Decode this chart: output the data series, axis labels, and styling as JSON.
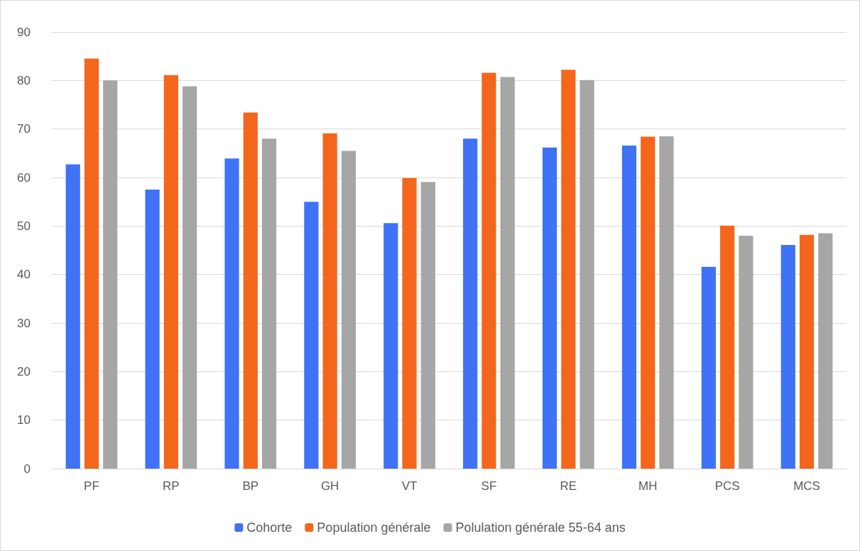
{
  "chart_data": {
    "type": "bar",
    "categories": [
      "PF",
      "RP",
      "BP",
      "GH",
      "VT",
      "SF",
      "RE",
      "MH",
      "PCS",
      "MCS"
    ],
    "series": [
      {
        "name": "Cohorte",
        "color": "#3f72f5",
        "values": [
          62.7,
          57.5,
          63.9,
          55.0,
          50.6,
          68.0,
          66.2,
          66.6,
          41.6,
          46.1
        ]
      },
      {
        "name": "Population générale",
        "color": "#f4661b",
        "values": [
          84.5,
          81.1,
          73.4,
          69.1,
          59.9,
          81.6,
          82.2,
          68.4,
          50.1,
          48.2
        ]
      },
      {
        "name": "Polulation générale 55-64 ans",
        "color": "#a6a6a6",
        "values": [
          80.0,
          78.8,
          68.0,
          65.5,
          59.1,
          80.7,
          80.1,
          68.5,
          48.0,
          48.5
        ]
      }
    ],
    "ylim": [
      0,
      90
    ],
    "yticks": [
      0,
      10,
      20,
      30,
      40,
      50,
      60,
      70,
      80,
      90
    ],
    "grid": "y",
    "legend": "bottom"
  }
}
